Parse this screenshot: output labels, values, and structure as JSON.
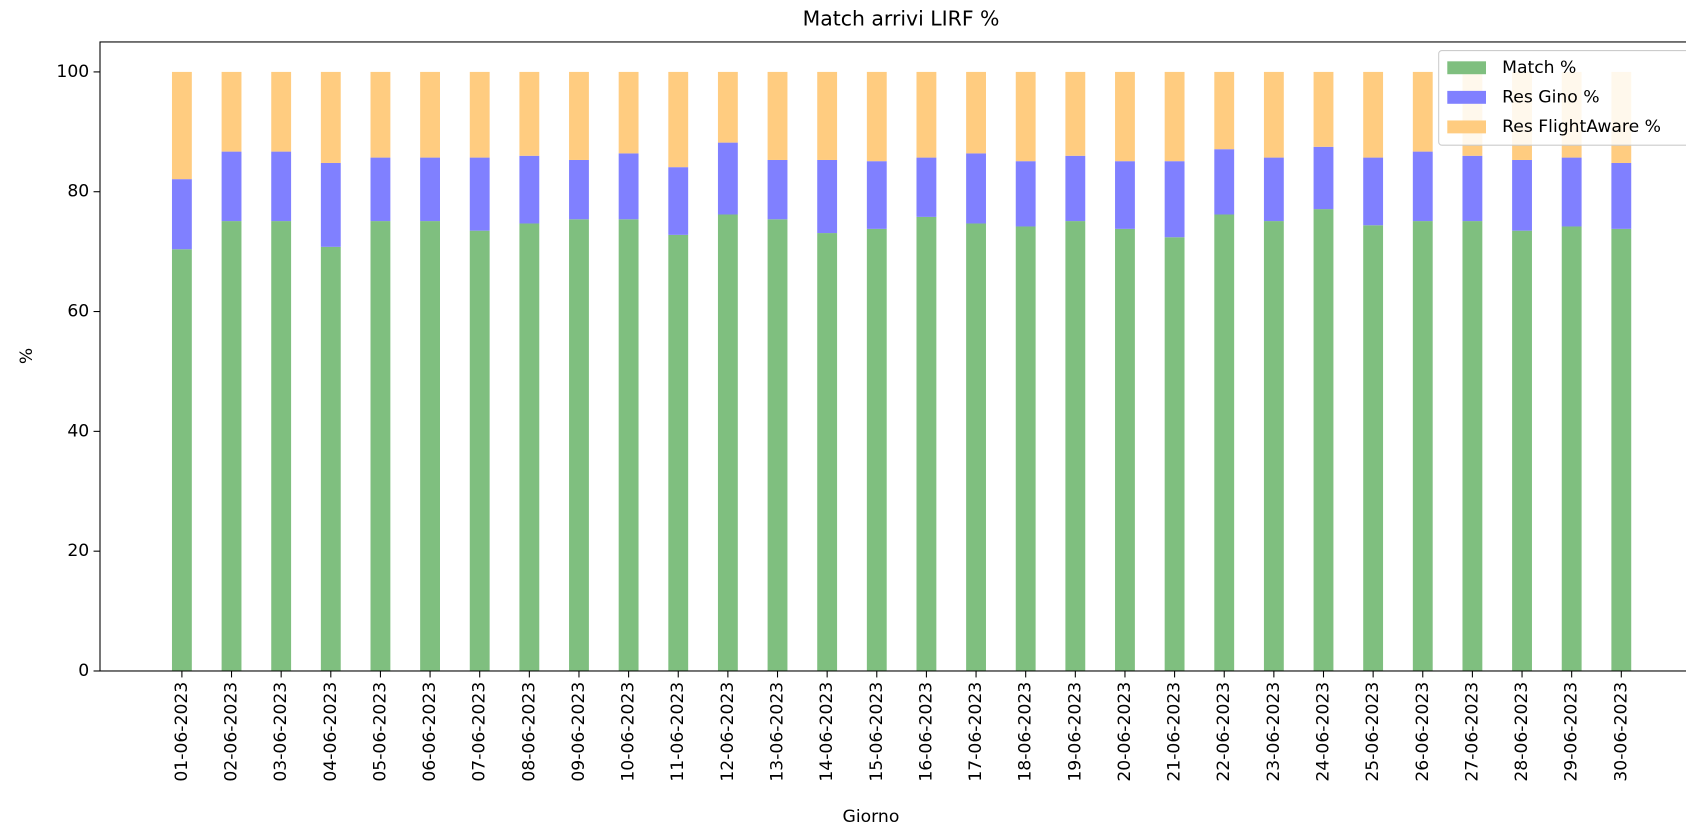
{
  "chart_data": {
    "type": "bar",
    "stacked": true,
    "title": "Match arrivi LIRF %",
    "xlabel": "Giorno",
    "ylabel": "%",
    "categories": [
      "01-06-2023",
      "02-06-2023",
      "03-06-2023",
      "04-06-2023",
      "05-06-2023",
      "06-06-2023",
      "07-06-2023",
      "08-06-2023",
      "09-06-2023",
      "10-06-2023",
      "11-06-2023",
      "12-06-2023",
      "13-06-2023",
      "14-06-2023",
      "15-06-2023",
      "16-06-2023",
      "17-06-2023",
      "18-06-2023",
      "19-06-2023",
      "20-06-2023",
      "21-06-2023",
      "22-06-2023",
      "23-06-2023",
      "24-06-2023",
      "25-06-2023",
      "26-06-2023",
      "27-06-2023",
      "28-06-2023",
      "29-06-2023",
      "30-06-2023"
    ],
    "series": [
      {
        "name": "Match %",
        "color": "#7fbf7f",
        "values": [
          70.4,
          75.1,
          75.1,
          70.8,
          75.1,
          75.1,
          73.5,
          74.7,
          75.4,
          75.4,
          72.8,
          76.2,
          75.4,
          73.1,
          73.8,
          75.8,
          74.7,
          74.2,
          75.1,
          73.8,
          72.4,
          76.2,
          75.1,
          77.1,
          74.4,
          75.1,
          75.1,
          73.5,
          74.2,
          73.8
        ]
      },
      {
        "name": "Res Gino %",
        "color": "#8080ff",
        "values": [
          11.7,
          11.6,
          11.6,
          14.0,
          10.6,
          10.6,
          12.2,
          11.3,
          9.9,
          11.0,
          11.3,
          12.0,
          9.9,
          12.2,
          11.3,
          9.9,
          11.7,
          10.9,
          10.9,
          11.3,
          12.7,
          10.9,
          10.6,
          10.4,
          11.3,
          11.6,
          10.9,
          11.8,
          11.5,
          11.0
        ]
      },
      {
        "name": "Res FlightAware %",
        "color": "#ffcc80",
        "values": [
          17.9,
          13.3,
          13.3,
          15.2,
          14.3,
          14.3,
          14.3,
          14.0,
          14.7,
          13.6,
          15.9,
          11.8,
          14.7,
          14.7,
          14.9,
          14.3,
          13.6,
          14.9,
          14.0,
          14.9,
          14.9,
          12.9,
          14.3,
          12.5,
          14.3,
          13.3,
          14.0,
          14.7,
          14.3,
          15.2
        ]
      }
    ],
    "ylim": [
      0,
      105
    ],
    "yticks": [
      0,
      20,
      40,
      60,
      80,
      100
    ],
    "legend": "upper right"
  }
}
